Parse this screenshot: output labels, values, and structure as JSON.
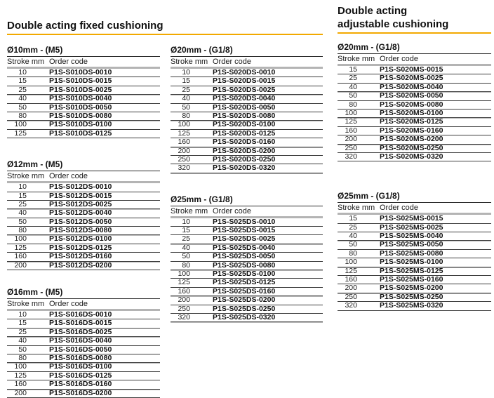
{
  "colors": {
    "accent": "#F2A900",
    "rule_dark": "#3d3d3d",
    "rule_gray": "#b4b4b4"
  },
  "sections": {
    "fixed": {
      "heading": "Double acting fixed cushioning"
    },
    "adjustable": {
      "heading_line1": "Double acting",
      "heading_line2": "adjustable cushioning"
    }
  },
  "column_headers": {
    "stroke": "Stroke mm",
    "code": "Order code"
  },
  "tables": {
    "d10": {
      "title": "Ø10mm - (M5)",
      "rows": [
        {
          "stroke": "10",
          "code": "P1S-S010DS-0010"
        },
        {
          "stroke": "15",
          "code": "P1S-S010DS-0015"
        },
        {
          "stroke": "25",
          "code": "P1S-S010DS-0025"
        },
        {
          "stroke": "40",
          "code": "P1S-S010DS-0040"
        },
        {
          "stroke": "50",
          "code": "P1S-S010DS-0050"
        },
        {
          "stroke": "80",
          "code": "P1S-S010DS-0080"
        },
        {
          "stroke": "100",
          "code": "P1S-S010DS-0100"
        },
        {
          "stroke": "125",
          "code": "P1S-S010DS-0125"
        }
      ]
    },
    "d12": {
      "title": "Ø12mm - (M5)",
      "rows": [
        {
          "stroke": "10",
          "code": "P1S-S012DS-0010"
        },
        {
          "stroke": "15",
          "code": "P1S-S012DS-0015"
        },
        {
          "stroke": "25",
          "code": "P1S-S012DS-0025"
        },
        {
          "stroke": "40",
          "code": "P1S-S012DS-0040"
        },
        {
          "stroke": "50",
          "code": "P1S-S012DS-0050"
        },
        {
          "stroke": "80",
          "code": "P1S-S012DS-0080"
        },
        {
          "stroke": "100",
          "code": "P1S-S012DS-0100"
        },
        {
          "stroke": "125",
          "code": "P1S-S012DS-0125"
        },
        {
          "stroke": "160",
          "code": "P1S-S012DS-0160"
        },
        {
          "stroke": "200",
          "code": "P1S-S012DS-0200"
        }
      ]
    },
    "d16": {
      "title": "Ø16mm - (M5)",
      "rows": [
        {
          "stroke": "10",
          "code": "P1S-S016DS-0010"
        },
        {
          "stroke": "15",
          "code": "P1S-S016DS-0015"
        },
        {
          "stroke": "25",
          "code": "P1S-S016DS-0025"
        },
        {
          "stroke": "40",
          "code": "P1S-S016DS-0040"
        },
        {
          "stroke": "50",
          "code": "P1S-S016DS-0050"
        },
        {
          "stroke": "80",
          "code": "P1S-S016DS-0080"
        },
        {
          "stroke": "100",
          "code": "P1S-S016DS-0100"
        },
        {
          "stroke": "125",
          "code": "P1S-S016DS-0125"
        },
        {
          "stroke": "160",
          "code": "P1S-S016DS-0160"
        },
        {
          "stroke": "200",
          "code": "P1S-S016DS-0200"
        }
      ]
    },
    "d20_fixed": {
      "title": "Ø20mm - (G1/8)",
      "rows": [
        {
          "stroke": "10",
          "code": "P1S-S020DS-0010"
        },
        {
          "stroke": "15",
          "code": "P1S-S020DS-0015"
        },
        {
          "stroke": "25",
          "code": "P1S-S020DS-0025"
        },
        {
          "stroke": "40",
          "code": "P1S-S020DS-0040"
        },
        {
          "stroke": "50",
          "code": "P1S-S020DS-0050"
        },
        {
          "stroke": "80",
          "code": "P1S-S020DS-0080"
        },
        {
          "stroke": "100",
          "code": "P1S-S020DS-0100"
        },
        {
          "stroke": "125",
          "code": "P1S-S020DS-0125"
        },
        {
          "stroke": "160",
          "code": "P1S-S020DS-0160"
        },
        {
          "stroke": "200",
          "code": "P1S-S020DS-0200"
        },
        {
          "stroke": "250",
          "code": "P1S-S020DS-0250"
        },
        {
          "stroke": "320",
          "code": "P1S-S020DS-0320"
        }
      ]
    },
    "d25_fixed": {
      "title": "Ø25mm - (G1/8)",
      "rows": [
        {
          "stroke": "10",
          "code": "P1S-S025DS-0010"
        },
        {
          "stroke": "15",
          "code": "P1S-S025DS-0015"
        },
        {
          "stroke": "25",
          "code": "P1S-S025DS-0025"
        },
        {
          "stroke": "40",
          "code": "P1S-S025DS-0040"
        },
        {
          "stroke": "50",
          "code": "P1S-S025DS-0050"
        },
        {
          "stroke": "80",
          "code": "P1S-S025DS-0080"
        },
        {
          "stroke": "100",
          "code": "P1S-S025DS-0100"
        },
        {
          "stroke": "125",
          "code": "P1S-S025DS-0125"
        },
        {
          "stroke": "160",
          "code": "P1S-S025DS-0160"
        },
        {
          "stroke": "200",
          "code": "P1S-S025DS-0200"
        },
        {
          "stroke": "250",
          "code": "P1S-S025DS-0250"
        },
        {
          "stroke": "320",
          "code": "P1S-S025DS-0320"
        }
      ]
    },
    "d20_adj": {
      "title": "Ø20mm - (G1/8)",
      "rows": [
        {
          "stroke": "15",
          "code": "P1S-S020MS-0015"
        },
        {
          "stroke": "25",
          "code": "P1S-S020MS-0025"
        },
        {
          "stroke": "40",
          "code": "P1S-S020MS-0040"
        },
        {
          "stroke": "50",
          "code": "P1S-S020MS-0050"
        },
        {
          "stroke": "80",
          "code": "P1S-S020MS-0080"
        },
        {
          "stroke": "100",
          "code": "P1S-S020MS-0100"
        },
        {
          "stroke": "125",
          "code": "P1S-S020MS-0125"
        },
        {
          "stroke": "160",
          "code": "P1S-S020MS-0160"
        },
        {
          "stroke": "200",
          "code": "P1S-S020MS-0200"
        },
        {
          "stroke": "250",
          "code": "P1S-S020MS-0250"
        },
        {
          "stroke": "320",
          "code": "P1S-S020MS-0320"
        }
      ]
    },
    "d25_adj": {
      "title": "Ø25mm - (G1/8)",
      "rows": [
        {
          "stroke": "15",
          "code": "P1S-S025MS-0015"
        },
        {
          "stroke": "25",
          "code": "P1S-S025MS-0025"
        },
        {
          "stroke": "40",
          "code": "P1S-S025MS-0040"
        },
        {
          "stroke": "50",
          "code": "P1S-S025MS-0050"
        },
        {
          "stroke": "80",
          "code": "P1S-S025MS-0080"
        },
        {
          "stroke": "100",
          "code": "P1S-S025MS-0100"
        },
        {
          "stroke": "125",
          "code": "P1S-S025MS-0125"
        },
        {
          "stroke": "160",
          "code": "P1S-S025MS-0160"
        },
        {
          "stroke": "200",
          "code": "P1S-S025MS-0200"
        },
        {
          "stroke": "250",
          "code": "P1S-S025MS-0250"
        },
        {
          "stroke": "320",
          "code": "P1S-S025MS-0320"
        }
      ]
    }
  }
}
